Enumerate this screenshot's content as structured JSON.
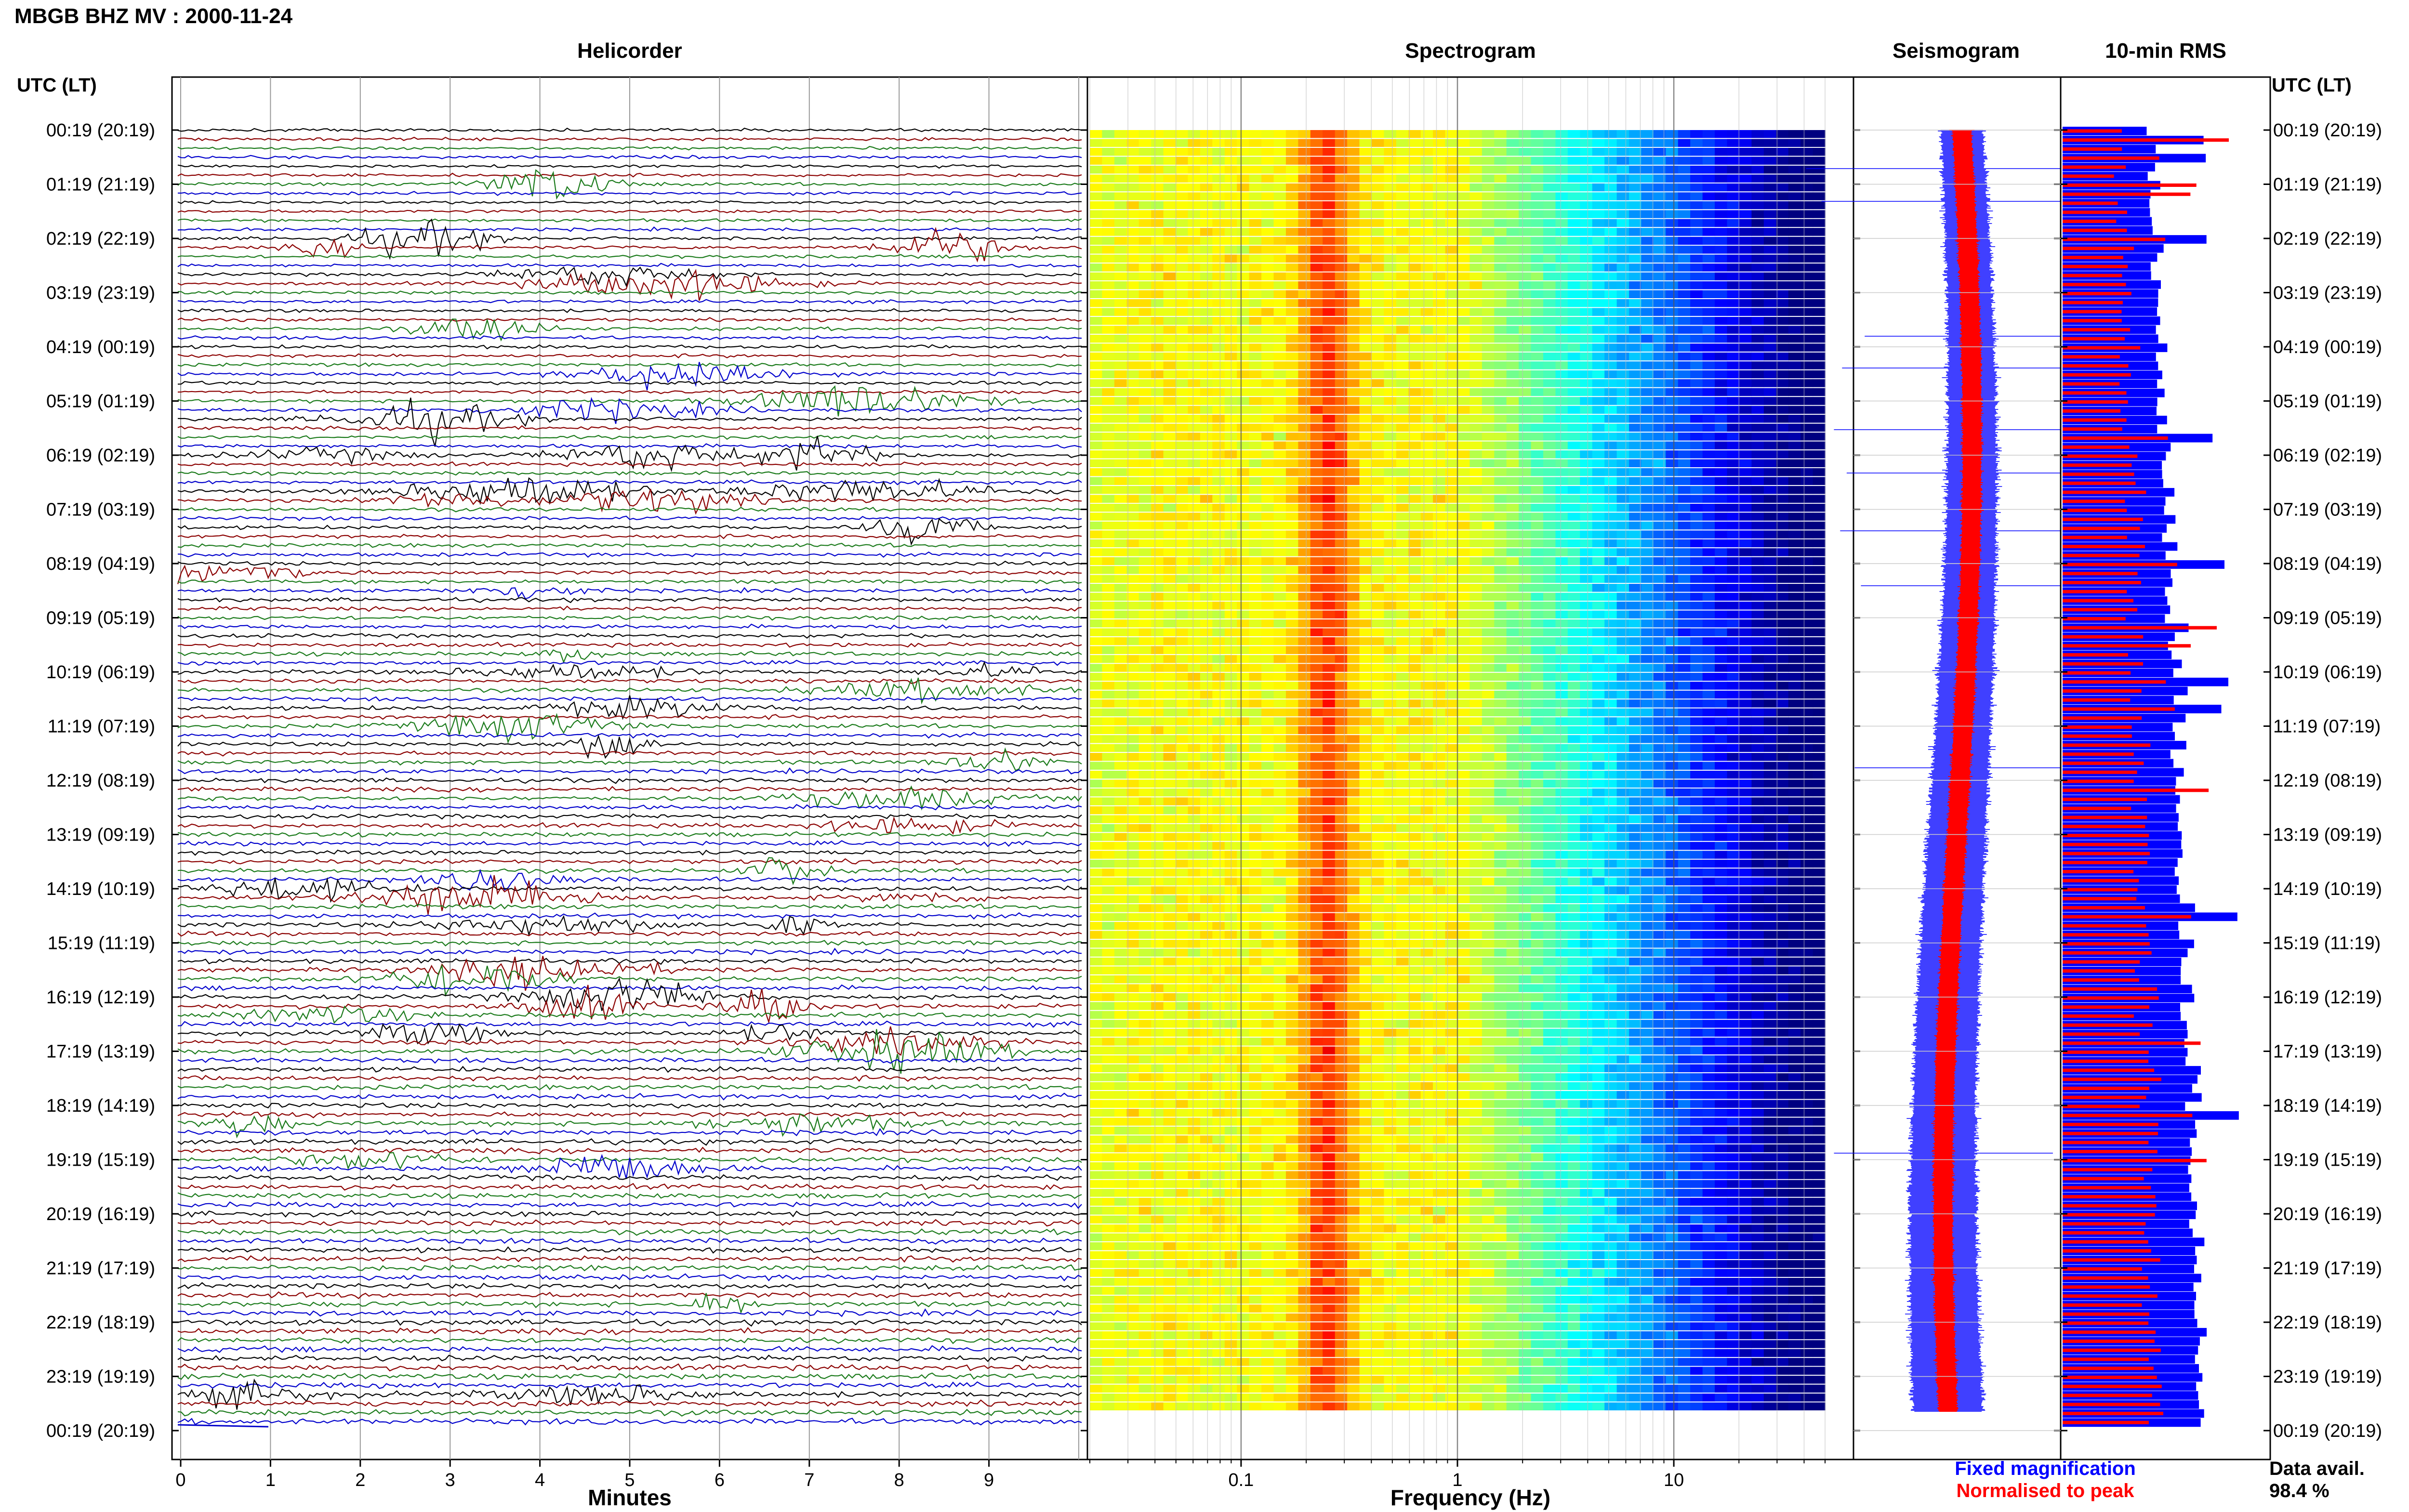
{
  "title": "MBGB BHZ MV : 2000-11-24",
  "headers": {
    "helicorder": "Helicorder",
    "spectrogram": "Spectrogram",
    "seismogram": "Seismogram",
    "rms": "10-min RMS",
    "utc_left": "UTC (LT)",
    "utc_right": "UTC (LT)"
  },
  "axes": {
    "minutes_label": "Minutes",
    "frequency_label": "Frequency (Hz)"
  },
  "legend": {
    "fixed": "Fixed magnification",
    "normalised": "Normalised to peak"
  },
  "data_availability": {
    "label": "Data avail.",
    "value": "98.4 %"
  },
  "colors": {
    "trace_cycle": [
      "#000000",
      "#8b0000",
      "#1a7a1a",
      "#0000cc"
    ],
    "fixed": "#0000ff",
    "normalised": "#ff0000"
  },
  "chart_data": [
    {
      "type": "line",
      "title": "Helicorder",
      "xlabel": "Minutes",
      "x_ticks": [
        "0",
        "1",
        "2",
        "3",
        "4",
        "5",
        "6",
        "7",
        "8",
        "9"
      ],
      "xlim": [
        0,
        10
      ],
      "y_tick_labels": [
        "00:19 (20:19)",
        "01:19 (21:19)",
        "02:19 (22:19)",
        "03:19 (23:19)",
        "04:19 (00:19)",
        "05:19 (01:19)",
        "06:19 (02:19)",
        "07:19 (03:19)",
        "08:19 (04:19)",
        "09:19 (05:19)",
        "10:19 (06:19)",
        "11:19 (07:19)",
        "12:19 (08:19)",
        "13:19 (09:19)",
        "14:19 (10:19)",
        "15:19 (11:19)",
        "16:19 (12:19)",
        "17:19 (13:19)",
        "18:19 (14:19)",
        "19:19 (15:19)",
        "20:19 (16:19)",
        "21:19 (17:19)",
        "22:19 (18:19)",
        "23:19 (19:19)",
        "00:19 (20:19)"
      ],
      "traces_per_hour": 6,
      "grid": true
    },
    {
      "type": "heatmap",
      "title": "Spectrogram",
      "xlabel": "Frequency (Hz)",
      "x_scale": "log",
      "xlim": [
        0.02,
        50
      ],
      "x_ticks": [
        "0.1",
        "1",
        "10"
      ]
    },
    {
      "type": "line",
      "title": "Seismogram",
      "series": [
        {
          "name": "Fixed magnification",
          "color": "#0000ff"
        },
        {
          "name": "Normalised to peak",
          "color": "#ff0000"
        }
      ]
    },
    {
      "type": "bar",
      "title": "10-min RMS",
      "orientation": "horizontal",
      "series": [
        {
          "name": "Fixed magnification",
          "color": "#0000ff"
        },
        {
          "name": "Normalised to peak",
          "color": "#ff0000"
        }
      ]
    }
  ]
}
